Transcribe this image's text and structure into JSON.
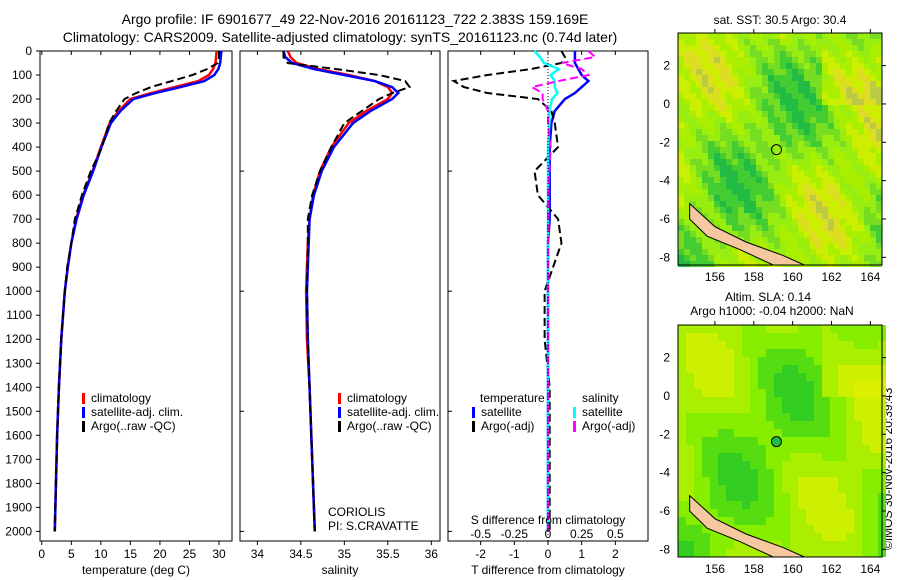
{
  "title_line1": "Argo profile: IF 6901677_49 22-Nov-2016 20161123_722 2.383S 159.169E",
  "title_line2": "Climatology: CARS2009. Satellite-adjusted climatology: synTS_20161123.nc (0.74d later)",
  "colors": {
    "climatology": "#ff0000",
    "satellite": "#0000ff",
    "argo": "#000000",
    "sal_satellite": "#00ffff",
    "sal_argo": "#ff00ff"
  },
  "chart_data": [
    {
      "type": "line",
      "id": "temp",
      "xlabel": "temperature (deg C)",
      "ylabel": "",
      "xlim": [
        -0.3,
        32.2
      ],
      "ylim": [
        2040,
        0
      ],
      "xticks": [
        0,
        5,
        10,
        15,
        20,
        25,
        30
      ],
      "yticks": [
        0,
        100,
        200,
        300,
        400,
        500,
        600,
        700,
        800,
        900,
        1000,
        1100,
        1200,
        1300,
        1400,
        1500,
        1600,
        1700,
        1800,
        1900,
        2000
      ],
      "legend": [
        "climatology",
        "satellite-adj. clim.",
        "Argo(..raw -QC)"
      ],
      "depth": [
        0,
        25,
        50,
        75,
        100,
        125,
        150,
        175,
        200,
        250,
        300,
        400,
        500,
        600,
        700,
        800,
        900,
        1000,
        1200,
        1400,
        1600,
        1800,
        2000
      ],
      "series": [
        {
          "name": "climatology",
          "values": [
            29.6,
            29.5,
            29.4,
            29.0,
            28.3,
            26.5,
            22.5,
            18.5,
            15.0,
            13.0,
            11.5,
            10.0,
            8.6,
            7.0,
            5.8,
            5.0,
            4.4,
            3.9,
            3.3,
            2.9,
            2.6,
            2.4,
            2.2
          ]
        },
        {
          "name": "satellite-adj. clim.",
          "values": [
            30.4,
            30.3,
            30.2,
            29.9,
            29.2,
            27.5,
            23.5,
            19.2,
            15.5,
            13.3,
            11.7,
            10.1,
            8.7,
            7.1,
            5.9,
            5.0,
            4.4,
            3.9,
            3.3,
            2.9,
            2.6,
            2.4,
            2.2
          ]
        },
        {
          "name": "Argo(..raw -QC)",
          "values": [
            30.0,
            30.0,
            29.8,
            28.0,
            25.5,
            22.0,
            18.5,
            16.0,
            14.0,
            12.6,
            11.4,
            10.2,
            8.3,
            6.8,
            5.6,
            5.0,
            4.3,
            3.9,
            3.3,
            2.9,
            2.6,
            2.4,
            2.2
          ]
        }
      ]
    },
    {
      "type": "line",
      "id": "sal",
      "xlabel": "salinity",
      "xlim": [
        33.8,
        36.1
      ],
      "ylim": [
        2040,
        0
      ],
      "xticks": [
        34,
        34.5,
        35,
        35.5,
        36
      ],
      "legend": [
        "climatology",
        "satellite-adj. clim.",
        "Argo(..raw -QC)"
      ],
      "annotation": [
        "CORIOLIS",
        "PI: S.CRAVATTE"
      ],
      "depth": [
        0,
        25,
        50,
        75,
        100,
        125,
        150,
        175,
        200,
        250,
        300,
        400,
        500,
        600,
        700,
        800,
        1000,
        1200,
        1400,
        1600,
        1800,
        2000
      ],
      "series": [
        {
          "name": "climatology",
          "values": [
            34.35,
            34.38,
            34.45,
            34.7,
            35.05,
            35.35,
            35.5,
            35.55,
            35.5,
            35.25,
            35.05,
            34.85,
            34.72,
            34.64,
            34.6,
            34.58,
            34.56,
            34.57,
            34.6,
            34.62,
            34.64,
            34.66
          ]
        },
        {
          "name": "satellite-adj. clim.",
          "values": [
            34.3,
            34.32,
            34.4,
            34.65,
            35.0,
            35.35,
            35.55,
            35.62,
            35.55,
            35.3,
            35.1,
            34.88,
            34.74,
            34.65,
            34.6,
            34.59,
            34.57,
            34.58,
            34.6,
            34.62,
            34.64,
            34.66
          ]
        },
        {
          "name": "Argo(..raw -QC)",
          "values": [
            34.3,
            34.3,
            34.35,
            34.9,
            35.4,
            35.7,
            35.75,
            35.55,
            35.4,
            35.2,
            35.0,
            34.85,
            34.72,
            34.63,
            34.58,
            34.58,
            34.57,
            34.58,
            34.6,
            34.62,
            34.64,
            34.66
          ]
        }
      ]
    },
    {
      "type": "line",
      "id": "diff",
      "xlabel": "T difference from climatology",
      "xlabel2": "S difference from climatology",
      "xlim": [
        -2.97,
        2.97
      ],
      "ylim": [
        2040,
        0
      ],
      "xticks": [
        -2,
        -1,
        0,
        1,
        2
      ],
      "xticks2": [
        -0.5,
        -0.25,
        0,
        0.25,
        0.5
      ],
      "legend_headers": [
        "temperature",
        "salinity"
      ],
      "legend": [
        "satellite",
        "Argo(-adj)",
        "satellite",
        "Argo(-adj)"
      ],
      "depth": [
        0,
        25,
        50,
        75,
        100,
        125,
        150,
        175,
        200,
        250,
        300,
        400,
        500,
        600,
        700,
        800,
        1000,
        1200,
        1400,
        1600,
        1800,
        2000
      ],
      "series": [
        {
          "name": "T satellite",
          "values": [
            0.8,
            0.8,
            0.8,
            0.9,
            1.0,
            1.2,
            1.0,
            0.8,
            0.5,
            0.2,
            0.1,
            0.05,
            0.05,
            0.05,
            0.05,
            0.0,
            0.0,
            0.0,
            0.0,
            0.0,
            0.0,
            0.0
          ]
        },
        {
          "name": "T Argo(-adj)",
          "values": [
            0.4,
            0.5,
            0.4,
            -0.5,
            -1.8,
            -2.8,
            -2.5,
            -1.8,
            -0.3,
            0.1,
            0.2,
            0.3,
            -0.4,
            -0.3,
            0.3,
            0.4,
            -0.1,
            -0.1,
            0.05,
            0.05,
            0.05,
            0.05
          ]
        },
        {
          "name": "S satellite",
          "values": [
            -0.1,
            -0.06,
            -0.03,
            0.08,
            0.02,
            0.05,
            0.05,
            0.07,
            0.03,
            0.01,
            0.01,
            0.0,
            0.0,
            0.0,
            0.0,
            0.0,
            0.0,
            0.0,
            0.0,
            0.0,
            0.0,
            0.0
          ]
        },
        {
          "name": "S Argo(-adj)",
          "values": [
            0.3,
            0.35,
            0.1,
            0.25,
            0.3,
            0.08,
            -0.12,
            -0.04,
            -0.04,
            0.0,
            0.0,
            0.02,
            0.01,
            0.0,
            0.0,
            0.0,
            0.0,
            0.0,
            0.0,
            0.0,
            0.0,
            0.0
          ]
        }
      ]
    },
    {
      "type": "heatmap",
      "id": "sst",
      "title": "sat. SST: 30.5  Argo: 30.4",
      "xlim": [
        154.1,
        164.6
      ],
      "ylim": [
        -8.4,
        3.7
      ],
      "xticks": [
        156,
        158,
        160,
        162,
        164
      ],
      "yticks": [
        2,
        0,
        -2,
        -4,
        -6,
        -8
      ],
      "argo_position": {
        "lon": 159.169,
        "lat": -2.383
      }
    },
    {
      "type": "heatmap",
      "id": "sla",
      "title": "Altim. SLA: 0.14",
      "subtitle": "Argo h1000: -0.04 h2000: NaN",
      "xlim": [
        154.1,
        164.6
      ],
      "ylim": [
        -8.4,
        3.7
      ],
      "xticks": [
        156,
        158,
        160,
        162,
        164
      ],
      "yticks": [
        2,
        0,
        -2,
        -4,
        -6,
        -8
      ],
      "argo_position": {
        "lon": 159.169,
        "lat": -2.383
      }
    }
  ],
  "credit": "©IMOS 30-Nov-2016 20:39:43"
}
